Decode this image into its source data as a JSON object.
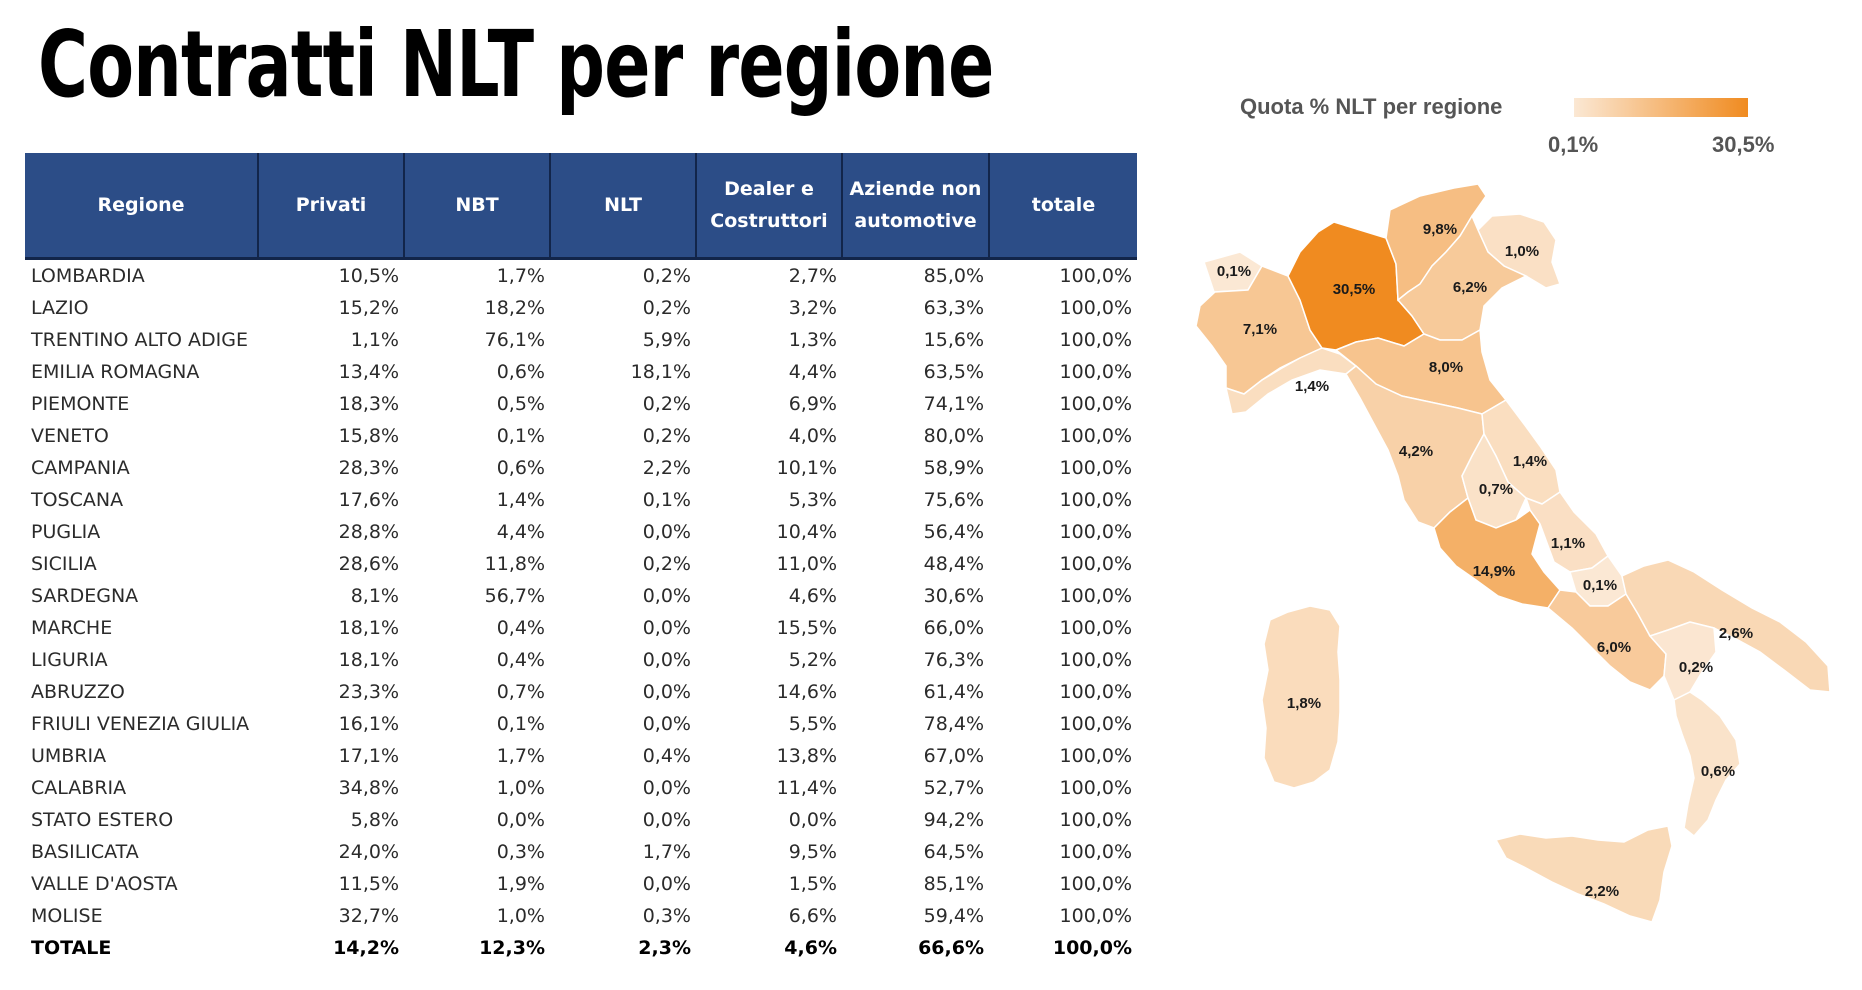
{
  "title": "Contratti NLT per regione",
  "table": {
    "headers": [
      "Regione",
      "Privati",
      "NBT",
      "NLT",
      "Dealer e Costruttori",
      "Aziende non automotive",
      "totale"
    ],
    "rows": [
      [
        "LOMBARDIA",
        "10,5%",
        "1,7%",
        "0,2%",
        "2,7%",
        "85,0%",
        "100,0%"
      ],
      [
        "LAZIO",
        "15,2%",
        "18,2%",
        "0,2%",
        "3,2%",
        "63,3%",
        "100,0%"
      ],
      [
        "TRENTINO ALTO ADIGE",
        "1,1%",
        "76,1%",
        "5,9%",
        "1,3%",
        "15,6%",
        "100,0%"
      ],
      [
        "EMILIA ROMAGNA",
        "13,4%",
        "0,6%",
        "18,1%",
        "4,4%",
        "63,5%",
        "100,0%"
      ],
      [
        "PIEMONTE",
        "18,3%",
        "0,5%",
        "0,2%",
        "6,9%",
        "74,1%",
        "100,0%"
      ],
      [
        "VENETO",
        "15,8%",
        "0,1%",
        "0,2%",
        "4,0%",
        "80,0%",
        "100,0%"
      ],
      [
        "CAMPANIA",
        "28,3%",
        "0,6%",
        "2,2%",
        "10,1%",
        "58,9%",
        "100,0%"
      ],
      [
        "TOSCANA",
        "17,6%",
        "1,4%",
        "0,1%",
        "5,3%",
        "75,6%",
        "100,0%"
      ],
      [
        "PUGLIA",
        "28,8%",
        "4,4%",
        "0,0%",
        "10,4%",
        "56,4%",
        "100,0%"
      ],
      [
        "SICILIA",
        "28,6%",
        "11,8%",
        "0,2%",
        "11,0%",
        "48,4%",
        "100,0%"
      ],
      [
        "SARDEGNA",
        "8,1%",
        "56,7%",
        "0,0%",
        "4,6%",
        "30,6%",
        "100,0%"
      ],
      [
        "MARCHE",
        "18,1%",
        "0,4%",
        "0,0%",
        "15,5%",
        "66,0%",
        "100,0%"
      ],
      [
        "LIGURIA",
        "18,1%",
        "0,4%",
        "0,0%",
        "5,2%",
        "76,3%",
        "100,0%"
      ],
      [
        "ABRUZZO",
        "23,3%",
        "0,7%",
        "0,0%",
        "14,6%",
        "61,4%",
        "100,0%"
      ],
      [
        "FRIULI VENEZIA GIULIA",
        "16,1%",
        "0,1%",
        "0,0%",
        "5,5%",
        "78,4%",
        "100,0%"
      ],
      [
        "UMBRIA",
        "17,1%",
        "1,7%",
        "0,4%",
        "13,8%",
        "67,0%",
        "100,0%"
      ],
      [
        "CALABRIA",
        "34,8%",
        "1,0%",
        "0,0%",
        "11,4%",
        "52,7%",
        "100,0%"
      ],
      [
        "STATO ESTERO",
        "5,8%",
        "0,0%",
        "0,0%",
        "0,0%",
        "94,2%",
        "100,0%"
      ],
      [
        "BASILICATA",
        "24,0%",
        "0,3%",
        "1,7%",
        "9,5%",
        "64,5%",
        "100,0%"
      ],
      [
        "VALLE D'AOSTA",
        "11,5%",
        "1,9%",
        "0,0%",
        "1,5%",
        "85,1%",
        "100,0%"
      ],
      [
        "MOLISE",
        "32,7%",
        "1,0%",
        "0,3%",
        "6,6%",
        "59,4%",
        "100,0%"
      ]
    ],
    "total": [
      "TOTALE",
      "14,2%",
      "12,3%",
      "2,3%",
      "4,6%",
      "66,6%",
      "100,0%"
    ]
  },
  "map": {
    "legend_title": "Quota % NLT per regione",
    "legend_min": "0,1%",
    "legend_max": "30,5%",
    "color_min": "#fbe8d4",
    "color_max": "#f08b20",
    "regions": [
      {
        "name": "valle-daosta",
        "share": 0.1,
        "label": "0,1%"
      },
      {
        "name": "piemonte",
        "share": 7.1,
        "label": "7,1%"
      },
      {
        "name": "liguria",
        "share": 1.4,
        "label": "1,4%"
      },
      {
        "name": "lombardia",
        "share": 30.5,
        "label": "30,5%"
      },
      {
        "name": "trentino-alto-adige",
        "share": 9.8,
        "label": "9,8%"
      },
      {
        "name": "friuli-venezia-giulia",
        "share": 1.0,
        "label": "1,0%"
      },
      {
        "name": "veneto",
        "share": 6.2,
        "label": "6,2%"
      },
      {
        "name": "emilia-romagna",
        "share": 8.0,
        "label": "8,0%"
      },
      {
        "name": "toscana",
        "share": 4.2,
        "label": "4,2%"
      },
      {
        "name": "marche",
        "share": 1.4,
        "label": "1,4%"
      },
      {
        "name": "umbria",
        "share": 0.7,
        "label": "0,7%"
      },
      {
        "name": "lazio",
        "share": 14.9,
        "label": "14,9%"
      },
      {
        "name": "abruzzo",
        "share": 1.1,
        "label": "1,1%"
      },
      {
        "name": "molise",
        "share": 0.1,
        "label": "0,1%"
      },
      {
        "name": "campania",
        "share": 6.0,
        "label": "6,0%"
      },
      {
        "name": "puglia",
        "share": 2.6,
        "label": "2,6%"
      },
      {
        "name": "basilicata",
        "share": 0.2,
        "label": "0,2%"
      },
      {
        "name": "calabria",
        "share": 0.6,
        "label": "0,6%"
      },
      {
        "name": "sicilia",
        "share": 2.2,
        "label": "2,2%"
      },
      {
        "name": "sardegna",
        "share": 1.8,
        "label": "1,8%"
      }
    ]
  }
}
